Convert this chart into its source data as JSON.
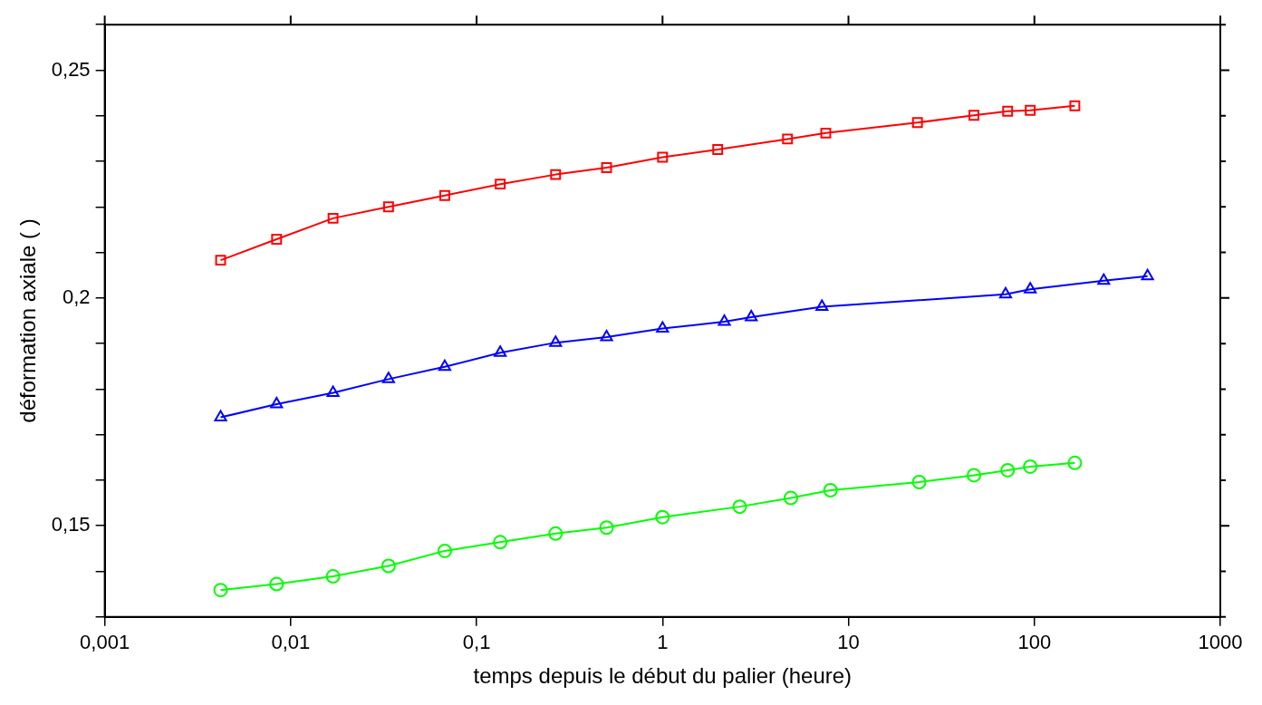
{
  "chart_data": {
    "type": "line",
    "xlabel": "temps depuis le début du palier (heure)",
    "ylabel": "déformation axiale ( )",
    "log": "x",
    "grid": false,
    "legend": false,
    "line_style": "solid",
    "xlim": [
      0.001,
      1000
    ],
    "xticks": [
      {
        "value": 0.001,
        "label": "0,001"
      },
      {
        "value": 0.01,
        "label": "0,01"
      },
      {
        "value": 0.1,
        "label": "0,1"
      },
      1,
      10,
      100,
      1000
    ],
    "ylim": [
      0.13,
      0.26
    ],
    "yticks": [
      {
        "value": 0.13,
        "label": null
      },
      {
        "value": 0.14,
        "label": null
      },
      {
        "value": 0.15,
        "label": "0,15"
      },
      {
        "value": 0.16,
        "label": null
      },
      {
        "value": 0.17,
        "label": null
      },
      {
        "value": 0.18,
        "label": null
      },
      {
        "value": 0.19,
        "label": null
      },
      {
        "value": 0.2,
        "label": "0,2"
      },
      {
        "value": 0.21,
        "label": null
      },
      {
        "value": 0.22,
        "label": null
      },
      {
        "value": 0.23,
        "label": null
      },
      {
        "value": 0.24,
        "label": null
      },
      {
        "value": 0.25,
        "label": "0,25"
      },
      {
        "value": 0.26,
        "label": null
      }
    ],
    "series": [
      {
        "color": "#ff0000",
        "marker": "square",
        "x": [
          0.0042,
          0.0084,
          0.0169,
          0.0336,
          0.0674,
          0.134,
          0.266,
          0.5,
          1,
          1.98,
          4.7,
          7.55,
          23.5,
          47.3,
          71.8,
          95,
          165
        ],
        "values": [
          0.2083,
          0.2129,
          0.2175,
          0.22,
          0.2225,
          0.225,
          0.2271,
          0.2286,
          0.2309,
          0.2326,
          0.2349,
          0.2362,
          0.2385,
          0.2401,
          0.241,
          0.2412,
          0.2422
        ]
      },
      {
        "color": "#0000ff",
        "marker": "triangle",
        "x": [
          0.0042,
          0.0084,
          0.0169,
          0.0336,
          0.0674,
          0.134,
          0.266,
          0.5,
          1,
          2.15,
          3.0,
          7.2,
          70,
          95,
          236,
          406
        ],
        "values": [
          0.1738,
          0.1767,
          0.1792,
          0.1822,
          0.1849,
          0.188,
          0.1902,
          0.1914,
          0.1933,
          0.1948,
          0.1958,
          0.1981,
          0.2008,
          0.2019,
          0.2038,
          0.2048
        ]
      },
      {
        "color": "#00ff00",
        "marker": "circle",
        "x": [
          0.0042,
          0.0084,
          0.0169,
          0.0336,
          0.0674,
          0.134,
          0.266,
          0.5,
          1,
          2.6,
          4.9,
          8,
          24,
          47.3,
          71.8,
          95,
          165
        ],
        "values": [
          0.1359,
          0.1372,
          0.1389,
          0.1412,
          0.1445,
          0.1464,
          0.1483,
          0.1496,
          0.1519,
          0.1542,
          0.1561,
          0.1578,
          0.1596,
          0.1611,
          0.1622,
          0.163,
          0.1638
        ]
      }
    ]
  }
}
